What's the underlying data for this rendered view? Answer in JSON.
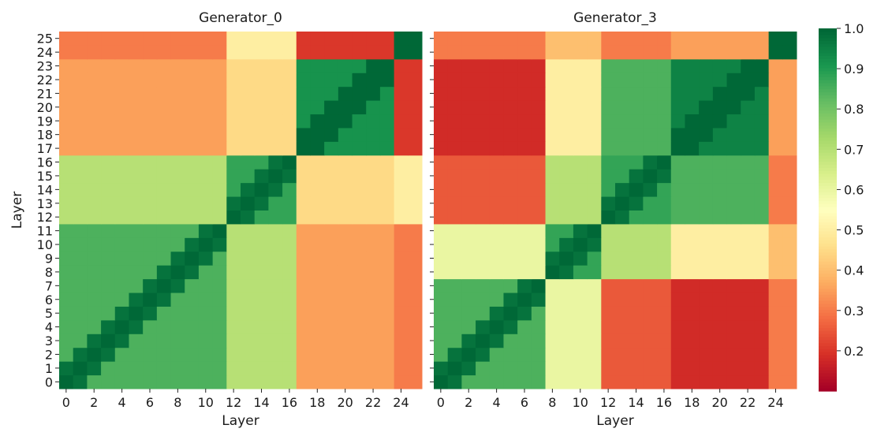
{
  "chart_data": {
    "type": "heatmap",
    "figure_description_free": true,
    "colormap": "RdYlGn",
    "value_range": [
      0.1,
      1.0
    ],
    "colorbar": {
      "ticks": [
        0.2,
        0.3,
        0.4,
        0.5,
        0.6,
        0.7,
        0.8,
        0.9,
        1.0
      ],
      "tick_labels": [
        "0.2",
        "0.3",
        "0.4",
        "0.5",
        "0.6",
        "0.7",
        "0.8",
        "0.9",
        "1.0"
      ]
    },
    "panels": [
      {
        "title": "Generator_0",
        "xlabel": "Layer",
        "ylabel": "Layer",
        "size": 26,
        "x_tick_labels": [
          "0",
          "2",
          "4",
          "6",
          "8",
          "10",
          "12",
          "14",
          "16",
          "18",
          "20",
          "22",
          "24"
        ],
        "y_tick_labels": [
          "0",
          "1",
          "2",
          "3",
          "4",
          "5",
          "6",
          "7",
          "8",
          "9",
          "10",
          "11",
          "12",
          "13",
          "14",
          "15",
          "16",
          "17",
          "18",
          "19",
          "20",
          "21",
          "22",
          "23",
          "24",
          "25"
        ],
        "row_order": "bottom-to-top",
        "blocks": [
          {
            "range": [
              0,
              11
            ],
            "base": 0.85,
            "near": 0.98
          },
          {
            "range": [
              12,
              16
            ],
            "base": 0.88,
            "near": 0.98
          },
          {
            "range": [
              17,
              23
            ],
            "base": 0.92,
            "near": 1.0
          },
          {
            "range": [
              24,
              25
            ],
            "base": 0.95,
            "near": 1.0
          }
        ],
        "cross_block_values": [
          {
            "a": [
              0,
              11
            ],
            "b": [
              12,
              16
            ],
            "value": 0.7
          },
          {
            "a": [
              0,
              11
            ],
            "b": [
              17,
              23
            ],
            "value": 0.35
          },
          {
            "a": [
              0,
              11
            ],
            "b": [
              24,
              25
            ],
            "value": 0.3
          },
          {
            "a": [
              12,
              16
            ],
            "b": [
              17,
              23
            ],
            "value": 0.45
          },
          {
            "a": [
              12,
              16
            ],
            "b": [
              24,
              25
            ],
            "value": 0.5
          },
          {
            "a": [
              17,
              23
            ],
            "b": [
              24,
              25
            ],
            "value": 0.2
          }
        ]
      },
      {
        "title": "Generator_3",
        "xlabel": "Layer",
        "ylabel": "",
        "size": 26,
        "x_tick_labels": [
          "0",
          "2",
          "4",
          "6",
          "8",
          "10",
          "12",
          "14",
          "16",
          "18",
          "20",
          "22",
          "24"
        ],
        "y_tick_labels": [],
        "row_order": "bottom-to-top",
        "blocks": [
          {
            "range": [
              0,
              7
            ],
            "base": 0.85,
            "near": 0.98
          },
          {
            "range": [
              8,
              11
            ],
            "base": 0.88,
            "near": 0.98
          },
          {
            "range": [
              12,
              16
            ],
            "base": 0.88,
            "near": 0.98
          },
          {
            "range": [
              17,
              23
            ],
            "base": 0.95,
            "near": 1.0
          },
          {
            "range": [
              24,
              25
            ],
            "base": 0.9,
            "near": 1.0
          }
        ],
        "cross_block_values": [
          {
            "a": [
              0,
              7
            ],
            "b": [
              8,
              11
            ],
            "value": 0.6
          },
          {
            "a": [
              0,
              7
            ],
            "b": [
              12,
              16
            ],
            "value": 0.25
          },
          {
            "a": [
              0,
              7
            ],
            "b": [
              17,
              23
            ],
            "value": 0.18
          },
          {
            "a": [
              0,
              7
            ],
            "b": [
              24,
              25
            ],
            "value": 0.3
          },
          {
            "a": [
              8,
              11
            ],
            "b": [
              12,
              16
            ],
            "value": 0.7
          },
          {
            "a": [
              8,
              11
            ],
            "b": [
              17,
              23
            ],
            "value": 0.5
          },
          {
            "a": [
              8,
              11
            ],
            "b": [
              24,
              25
            ],
            "value": 0.4
          },
          {
            "a": [
              12,
              16
            ],
            "b": [
              17,
              23
            ],
            "value": 0.85
          },
          {
            "a": [
              12,
              16
            ],
            "b": [
              24,
              25
            ],
            "value": 0.3
          },
          {
            "a": [
              17,
              23
            ],
            "b": [
              24,
              25
            ],
            "value": 0.35
          }
        ]
      }
    ]
  }
}
